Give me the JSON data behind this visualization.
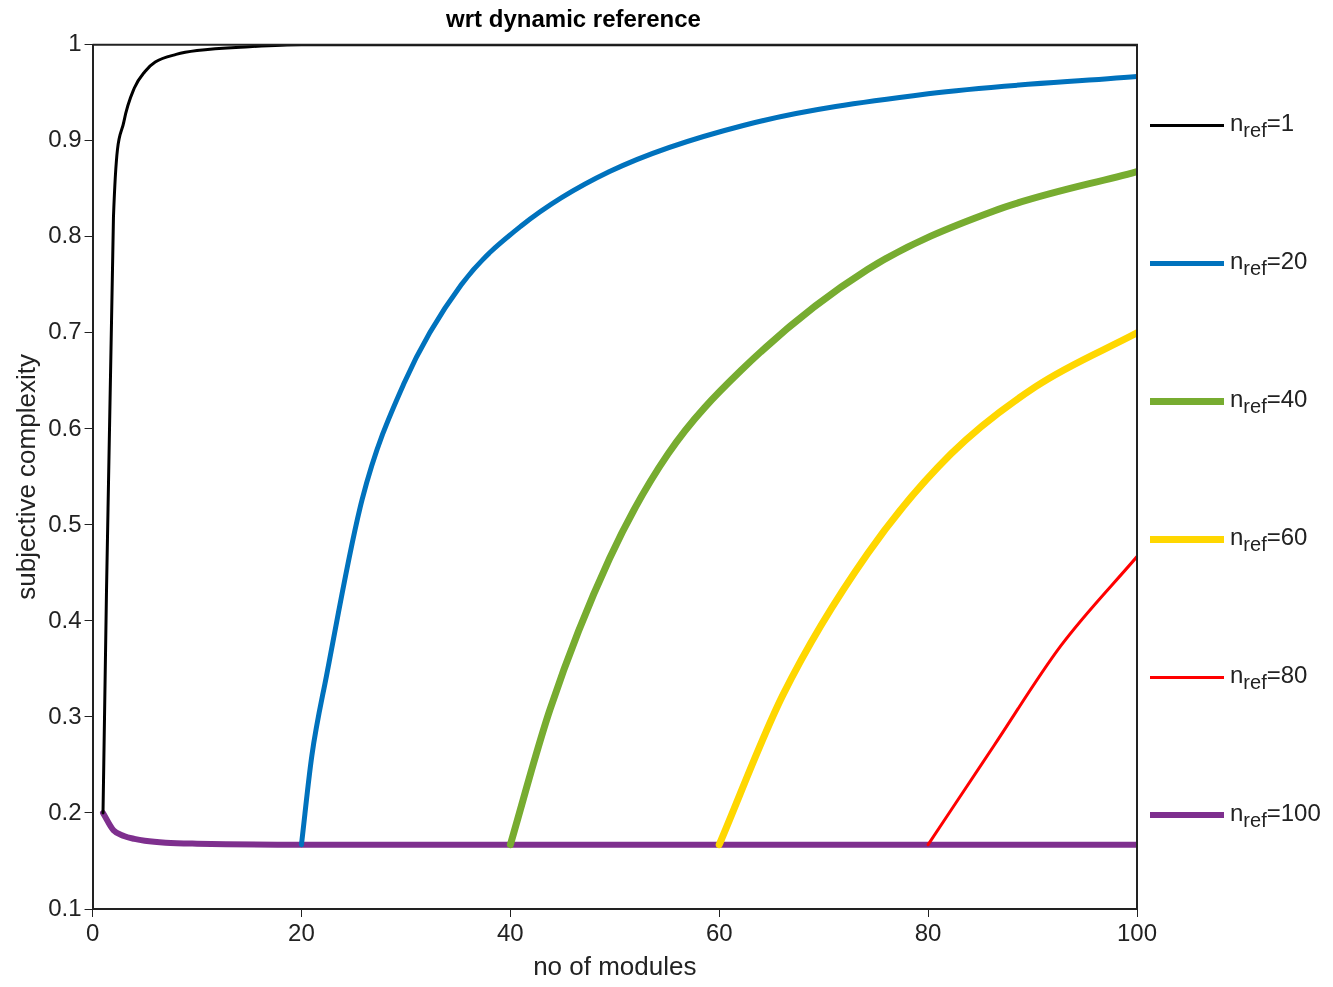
{
  "chart_data": {
    "type": "line",
    "title": "wrt dynamic reference",
    "xlabel": "no of modules",
    "ylabel": "subjective complexity",
    "xlim": [
      0,
      100
    ],
    "xticks": [
      0,
      20,
      40,
      60,
      80,
      100
    ],
    "ylim": [
      0.1,
      1
    ],
    "yticks": [
      0.1,
      0.2,
      0.3,
      0.4,
      0.5,
      0.6,
      0.7,
      0.8,
      0.9,
      1
    ],
    "grid": false,
    "legend": "right",
    "marker": "none",
    "line_style": "solid",
    "series": [
      {
        "name": "n$_{ref}$=1",
        "color": "#000000",
        "x": [
          1,
          2,
          3,
          4,
          5,
          6,
          8,
          10,
          15,
          20,
          100
        ],
        "values": [
          0.2,
          0.82,
          0.92,
          0.955,
          0.972,
          0.982,
          0.99,
          0.994,
          0.998,
          1,
          1
        ]
      },
      {
        "name": "n$_{ref}$=20",
        "color": "#0072bd",
        "x": [
          20,
          21,
          22.4,
          25.8,
          29.8,
          35.3,
          41,
          49.5,
          62.3,
          80,
          100
        ],
        "values": [
          0.167,
          0.26,
          0.343,
          0.526,
          0.647,
          0.75,
          0.811,
          0.868,
          0.916,
          0.949,
          0.967
        ]
      },
      {
        "name": "n$_{ref}$=40",
        "color": "#77ac30",
        "x": [
          40,
          43.8,
          49.5,
          55.1,
          62.1,
          74.2,
          86.3,
          100
        ],
        "values": [
          0.167,
          0.308,
          0.465,
          0.574,
          0.661,
          0.766,
          0.827,
          0.868
        ]
      },
      {
        "name": "n$_{ref}$=60",
        "color": "#ffd700",
        "x": [
          60,
          66.1,
          74.2,
          82.2,
          90.3,
          100
        ],
        "values": [
          0.167,
          0.323,
          0.47,
          0.574,
          0.644,
          0.7
        ]
      },
      {
        "name": "n$_{ref}$=80",
        "color": "#ff0000",
        "x": [
          80,
          86.3,
          92.7,
          100
        ],
        "values": [
          0.167,
          0.27,
          0.374,
          0.467
        ]
      },
      {
        "name": "n$_{ref}$=100",
        "color": "#7e2f8e",
        "x": [
          1,
          2,
          3,
          4,
          5,
          7,
          10,
          20,
          40,
          60,
          80,
          100
        ],
        "values": [
          0.2,
          0.182,
          0.176,
          0.173,
          0.171,
          0.169,
          0.168,
          0.167,
          0.167,
          0.167,
          0.167,
          0.167
        ]
      }
    ]
  }
}
